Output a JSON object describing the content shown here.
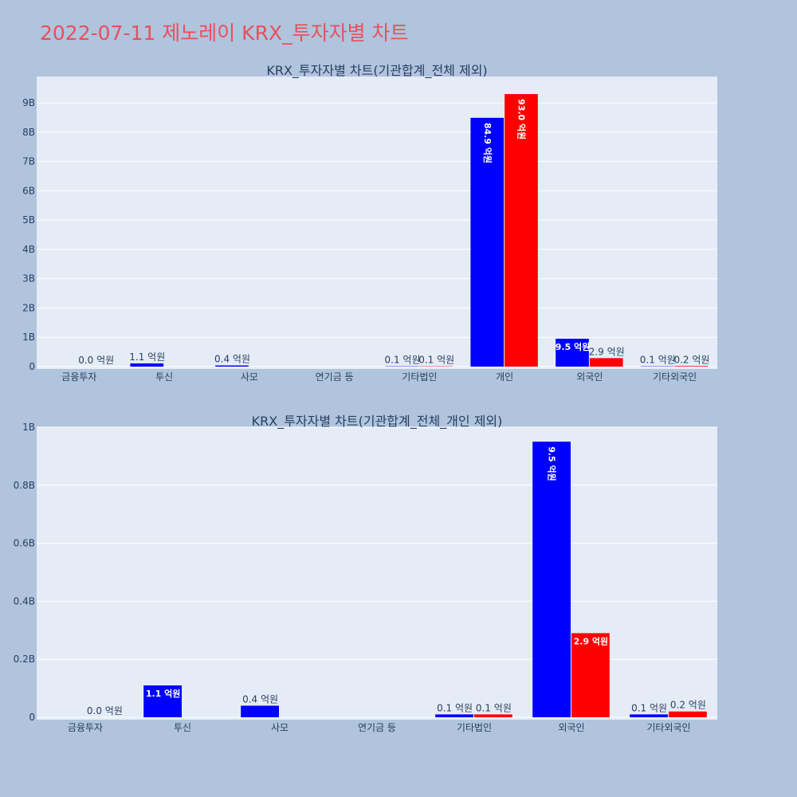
{
  "title": "2022-07-11 제노레이 KRX_투자자별 차트",
  "colors": {
    "series_a": "#0000ff",
    "series_b": "#ff0000",
    "plot_bg": "#e5ecf6",
    "page_bg": "#b0c4de",
    "title": "#e8505b"
  },
  "chart_data": [
    {
      "type": "bar",
      "title": "KRX_투자자별 차트(기관합계_전체 제외)",
      "categories": [
        "금융투자",
        "투신",
        "사모",
        "연기금 등",
        "기타법인",
        "개인",
        "외국인",
        "기타외국인"
      ],
      "series": [
        {
          "values": [
            0,
            110000000,
            40000000,
            0,
            10000000,
            8490000000,
            950000000,
            10000000
          ],
          "labels": [
            "",
            "1.1 억원",
            "0.4 억원",
            "",
            "0.1 억원",
            "84.9 억원",
            "9.5 억원",
            "0.1 억원"
          ]
        },
        {
          "values": [
            0,
            0,
            0,
            0,
            10000000,
            9300000000,
            290000000,
            20000000
          ],
          "labels": [
            "0.0 억원",
            "",
            "",
            "",
            "0.1 억원",
            "93.0 억원",
            "2.9 억원",
            "0.2 억원"
          ]
        }
      ],
      "ylim": [
        0,
        9900000000
      ],
      "yticks": [
        0,
        1000000000,
        2000000000,
        3000000000,
        4000000000,
        5000000000,
        6000000000,
        7000000000,
        8000000000,
        9000000000
      ],
      "ytick_labels": [
        "0",
        "1B",
        "2B",
        "3B",
        "4B",
        "5B",
        "6B",
        "7B",
        "8B",
        "9B"
      ],
      "grid": true
    },
    {
      "type": "bar",
      "title": "KRX_투자자별 차트(기관합계_전체_개인 제외)",
      "categories": [
        "금융투자",
        "투신",
        "사모",
        "연기금 등",
        "기타법인",
        "외국인",
        "기타외국인"
      ],
      "series": [
        {
          "values": [
            0,
            110000000,
            40000000,
            0,
            10000000,
            950000000,
            10000000
          ],
          "labels": [
            "",
            "1.1 억원",
            "0.4 억원",
            "",
            "0.1 억원",
            "9.5 억원",
            "0.1 억원"
          ]
        },
        {
          "values": [
            0,
            0,
            0,
            0,
            10000000,
            290000000,
            20000000
          ],
          "labels": [
            "0.0 억원",
            "",
            "",
            "",
            "0.1 억원",
            "2.9 억원",
            "0.2 억원"
          ]
        }
      ],
      "ylim": [
        0,
        1000000000
      ],
      "yticks": [
        0,
        200000000,
        400000000,
        600000000,
        800000000,
        1000000000
      ],
      "ytick_labels": [
        "0",
        "0.2B",
        "0.4B",
        "0.6B",
        "0.8B",
        "1B"
      ],
      "grid": true
    }
  ]
}
